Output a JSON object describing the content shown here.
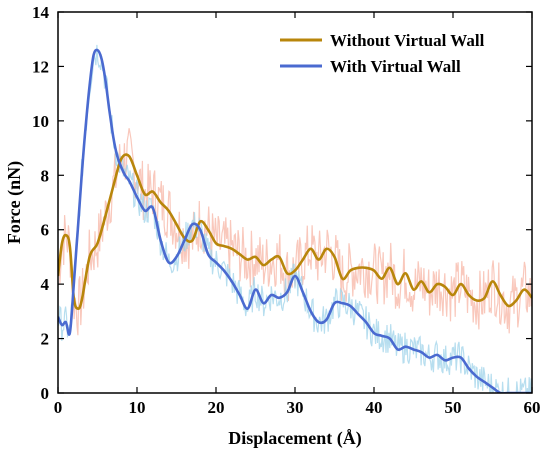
{
  "chart_data": {
    "type": "line",
    "title": "",
    "xlabel": "Displacement (Å)",
    "ylabel": "Force (nN)",
    "xlim": [
      0,
      60
    ],
    "ylim": [
      0,
      14
    ],
    "xticks": [
      0,
      10,
      20,
      30,
      40,
      50,
      60
    ],
    "yticks": [
      0,
      2,
      4,
      6,
      8,
      10,
      12,
      14
    ],
    "grid": false,
    "legend_position": "top-right",
    "series": [
      {
        "name": "Without Virtual Wall",
        "color": "#b8860b",
        "raw_color": "#f7b6a6",
        "x": [
          0,
          0.5,
          1,
          1.5,
          2,
          2.5,
          3,
          4,
          5,
          6,
          7,
          8,
          9,
          10,
          11,
          12,
          13,
          14,
          15,
          16,
          17,
          18,
          19,
          20,
          21,
          22,
          23,
          24,
          25,
          26,
          27,
          28,
          29,
          30,
          31,
          32,
          33,
          34,
          35,
          36,
          37,
          38,
          39,
          40,
          41,
          42,
          43,
          44,
          45,
          46,
          47,
          48,
          49,
          50,
          51,
          52,
          53,
          54,
          55,
          56,
          57,
          58,
          59,
          60
        ],
        "values": [
          4.3,
          5.5,
          5.8,
          5.4,
          3.5,
          3.1,
          3.4,
          5.0,
          5.5,
          6.5,
          7.6,
          8.6,
          8.7,
          8.0,
          7.3,
          7.4,
          7.0,
          6.7,
          6.2,
          5.7,
          5.6,
          6.3,
          6.0,
          5.5,
          5.4,
          5.3,
          5.1,
          4.9,
          5.0,
          4.7,
          4.9,
          5.0,
          4.4,
          4.5,
          4.9,
          5.3,
          4.9,
          5.3,
          5.0,
          4.2,
          4.5,
          4.6,
          4.6,
          4.5,
          4.2,
          4.6,
          4.0,
          4.4,
          3.8,
          4.1,
          3.7,
          4.0,
          3.9,
          3.6,
          4.0,
          3.6,
          3.4,
          3.5,
          4.1,
          3.6,
          3.2,
          3.4,
          3.8,
          3.5
        ]
      },
      {
        "name": "With Virtual Wall",
        "color": "#4a6ad0",
        "raw_color": "#9fd3ea",
        "x": [
          0,
          0.5,
          1,
          1.5,
          2,
          2.5,
          3,
          3.5,
          4,
          4.5,
          5,
          5.5,
          6,
          6.5,
          7,
          7.5,
          8,
          8.5,
          9,
          9.5,
          10,
          11,
          12,
          13,
          14,
          15,
          16,
          17,
          18,
          19,
          20,
          21,
          22,
          23,
          24,
          25,
          26,
          27,
          28,
          29,
          30,
          31,
          32,
          33,
          34,
          35,
          36,
          37,
          38,
          39,
          40,
          41,
          42,
          43,
          44,
          45,
          46,
          47,
          48,
          49,
          50,
          51,
          52,
          53,
          54,
          55,
          56,
          57,
          58,
          59,
          60
        ],
        "values": [
          2.8,
          2.5,
          2.6,
          2.2,
          4.0,
          6.0,
          8.0,
          9.8,
          11.3,
          12.4,
          12.6,
          12.3,
          11.5,
          10.4,
          9.4,
          8.7,
          8.3,
          8.0,
          7.8,
          7.5,
          7.2,
          6.7,
          6.8,
          5.6,
          4.8,
          5.0,
          5.6,
          6.2,
          6.0,
          5.1,
          4.8,
          4.5,
          4.1,
          3.6,
          3.1,
          3.8,
          3.3,
          3.6,
          3.5,
          3.7,
          4.3,
          3.7,
          3.0,
          2.6,
          2.7,
          3.3,
          3.3,
          3.2,
          2.9,
          2.6,
          2.2,
          2.1,
          2.0,
          1.6,
          1.7,
          1.6,
          1.5,
          1.3,
          1.4,
          1.2,
          1.3,
          1.3,
          0.9,
          0.6,
          0.4,
          0.2,
          0.0,
          0.0,
          0.0,
          0.0,
          0.0
        ]
      }
    ]
  }
}
